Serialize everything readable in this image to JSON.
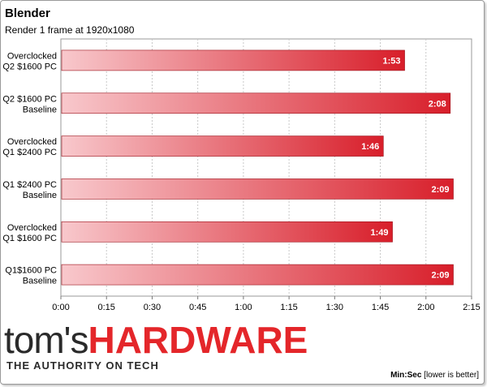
{
  "chart_data": {
    "type": "bar",
    "orientation": "horizontal",
    "title": "Blender",
    "subtitle": "Render 1 frame at 1920x1080",
    "categories": [
      [
        "Overclocked",
        "Q2 $1600 PC"
      ],
      [
        "Q2 $1600 PC",
        "Baseline"
      ],
      [
        "Overclocked",
        "Q1 $2400 PC"
      ],
      [
        "Q1 $2400 PC",
        "Baseline"
      ],
      [
        "Overclocked",
        "Q1 $1600 PC"
      ],
      [
        "Q1$1600 PC",
        "Baseline"
      ]
    ],
    "values": [
      113,
      128,
      106,
      129,
      109,
      129
    ],
    "value_labels": [
      "1:53",
      "2:08",
      "1:46",
      "2:09",
      "1:49",
      "2:09"
    ],
    "xlim": [
      0,
      135
    ],
    "xticks": [
      0,
      15,
      30,
      45,
      60,
      75,
      90,
      105,
      120,
      135
    ],
    "xtick_labels": [
      "0:00",
      "0:15",
      "0:30",
      "0:45",
      "1:00",
      "1:15",
      "1:30",
      "1:45",
      "2:00",
      "2:15"
    ],
    "grid": true,
    "bar_color_start": "#f8c8cc",
    "bar_color_end": "#d81e2a"
  },
  "footnote": {
    "bold": "Min:Sec",
    "rest": " [lower is better]"
  },
  "logo": {
    "toms": "tom's",
    "hardware": "HARDWARE",
    "tagline": "THE AUTHORITY ON TECH"
  }
}
